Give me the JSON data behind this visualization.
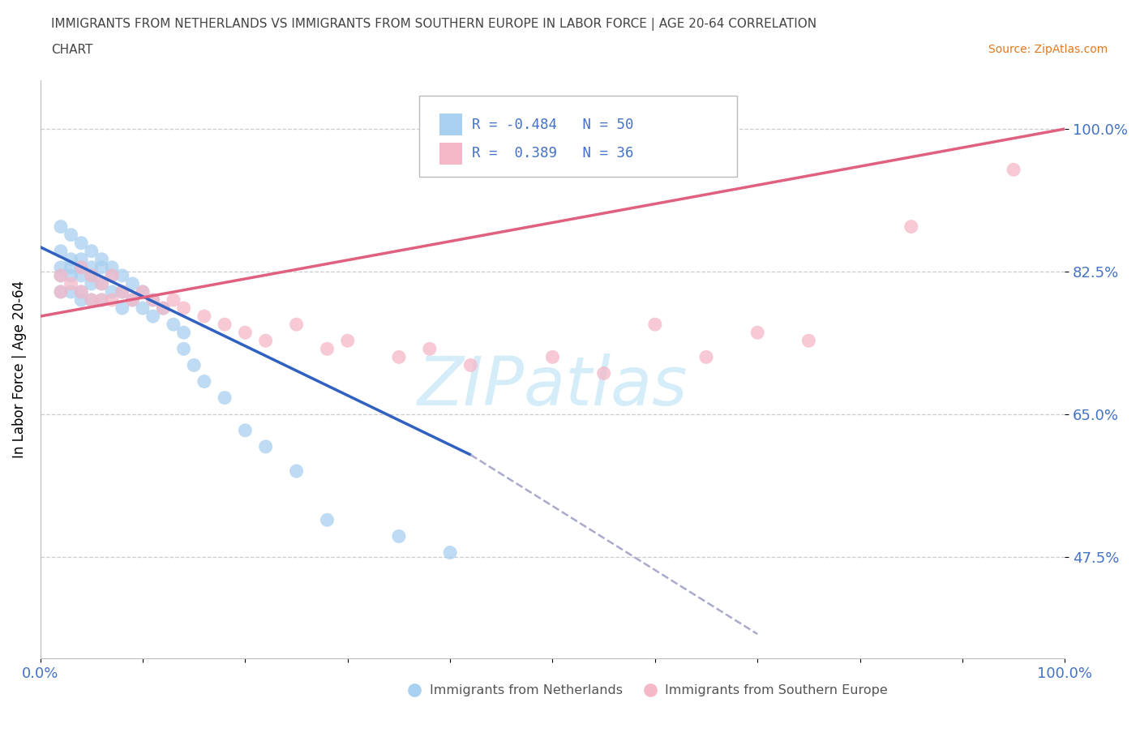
{
  "title_line1": "IMMIGRANTS FROM NETHERLANDS VS IMMIGRANTS FROM SOUTHERN EUROPE IN LABOR FORCE | AGE 20-64 CORRELATION",
  "title_line2": "CHART",
  "source": "Source: ZipAtlas.com",
  "ylabel": "In Labor Force | Age 20-64",
  "r1": -0.484,
  "n1": 50,
  "r2": 0.389,
  "n2": 36,
  "color_netherlands": "#a8d0f0",
  "color_southern": "#f5b8c8",
  "color_line_netherlands": "#3060c0",
  "color_line_southern": "#e06080",
  "color_dashed": "#aaaacc",
  "watermark_text": "ZIPatlas",
  "watermark_color": "#d5edf8",
  "axis_color": "#4472c4",
  "legend_label1": "Immigrants from Netherlands",
  "legend_label2": "Immigrants from Southern Europe",
  "blue_x": [
    0.02,
    0.02,
    0.02,
    0.02,
    0.02,
    0.03,
    0.03,
    0.03,
    0.03,
    0.03,
    0.04,
    0.04,
    0.04,
    0.04,
    0.04,
    0.04,
    0.05,
    0.05,
    0.05,
    0.05,
    0.05,
    0.06,
    0.06,
    0.06,
    0.06,
    0.07,
    0.07,
    0.07,
    0.08,
    0.08,
    0.08,
    0.09,
    0.09,
    0.1,
    0.1,
    0.11,
    0.11,
    0.12,
    0.13,
    0.14,
    0.14,
    0.15,
    0.16,
    0.18,
    0.2,
    0.22,
    0.25,
    0.28,
    0.35,
    0.4
  ],
  "blue_y": [
    0.88,
    0.85,
    0.83,
    0.82,
    0.8,
    0.87,
    0.84,
    0.83,
    0.82,
    0.8,
    0.86,
    0.84,
    0.83,
    0.82,
    0.8,
    0.79,
    0.85,
    0.83,
    0.82,
    0.81,
    0.79,
    0.84,
    0.83,
    0.81,
    0.79,
    0.83,
    0.82,
    0.8,
    0.82,
    0.8,
    0.78,
    0.81,
    0.79,
    0.8,
    0.78,
    0.79,
    0.77,
    0.78,
    0.76,
    0.75,
    0.73,
    0.71,
    0.69,
    0.67,
    0.63,
    0.61,
    0.58,
    0.52,
    0.5,
    0.48
  ],
  "pink_x": [
    0.02,
    0.02,
    0.03,
    0.04,
    0.04,
    0.05,
    0.05,
    0.06,
    0.06,
    0.07,
    0.07,
    0.08,
    0.09,
    0.1,
    0.11,
    0.12,
    0.13,
    0.14,
    0.16,
    0.18,
    0.2,
    0.22,
    0.25,
    0.28,
    0.3,
    0.35,
    0.38,
    0.42,
    0.5,
    0.55,
    0.6,
    0.65,
    0.7,
    0.75,
    0.85,
    0.95
  ],
  "pink_y": [
    0.82,
    0.8,
    0.81,
    0.83,
    0.8,
    0.82,
    0.79,
    0.81,
    0.79,
    0.82,
    0.79,
    0.8,
    0.79,
    0.8,
    0.79,
    0.78,
    0.79,
    0.78,
    0.77,
    0.76,
    0.75,
    0.74,
    0.76,
    0.73,
    0.74,
    0.72,
    0.73,
    0.71,
    0.72,
    0.7,
    0.76,
    0.72,
    0.75,
    0.74,
    0.88,
    0.95
  ],
  "blue_line_x0": 0.0,
  "blue_line_x_solid_end": 0.42,
  "blue_line_x1": 0.7,
  "blue_line_y0": 0.855,
  "blue_line_y_solid_end": 0.6,
  "blue_line_y1": 0.38,
  "pink_line_x0": 0.0,
  "pink_line_x1": 1.0,
  "pink_line_y0": 0.77,
  "pink_line_y1": 1.0,
  "xlim": [
    0.0,
    1.0
  ],
  "ylim": [
    0.35,
    1.06
  ],
  "yticks": [
    0.475,
    0.65,
    0.825,
    1.0
  ],
  "ytick_labels": [
    "47.5%",
    "65.0%",
    "82.5%",
    "100.0%"
  ],
  "xtick_positions": [
    0.0,
    0.1,
    0.2,
    0.3,
    0.4,
    0.5,
    0.6,
    0.7,
    0.8,
    0.9,
    1.0
  ],
  "xtick_labels_show": [
    "0.0%",
    "",
    "",
    "",
    "",
    "",
    "",
    "",
    "",
    "",
    "100.0%"
  ]
}
